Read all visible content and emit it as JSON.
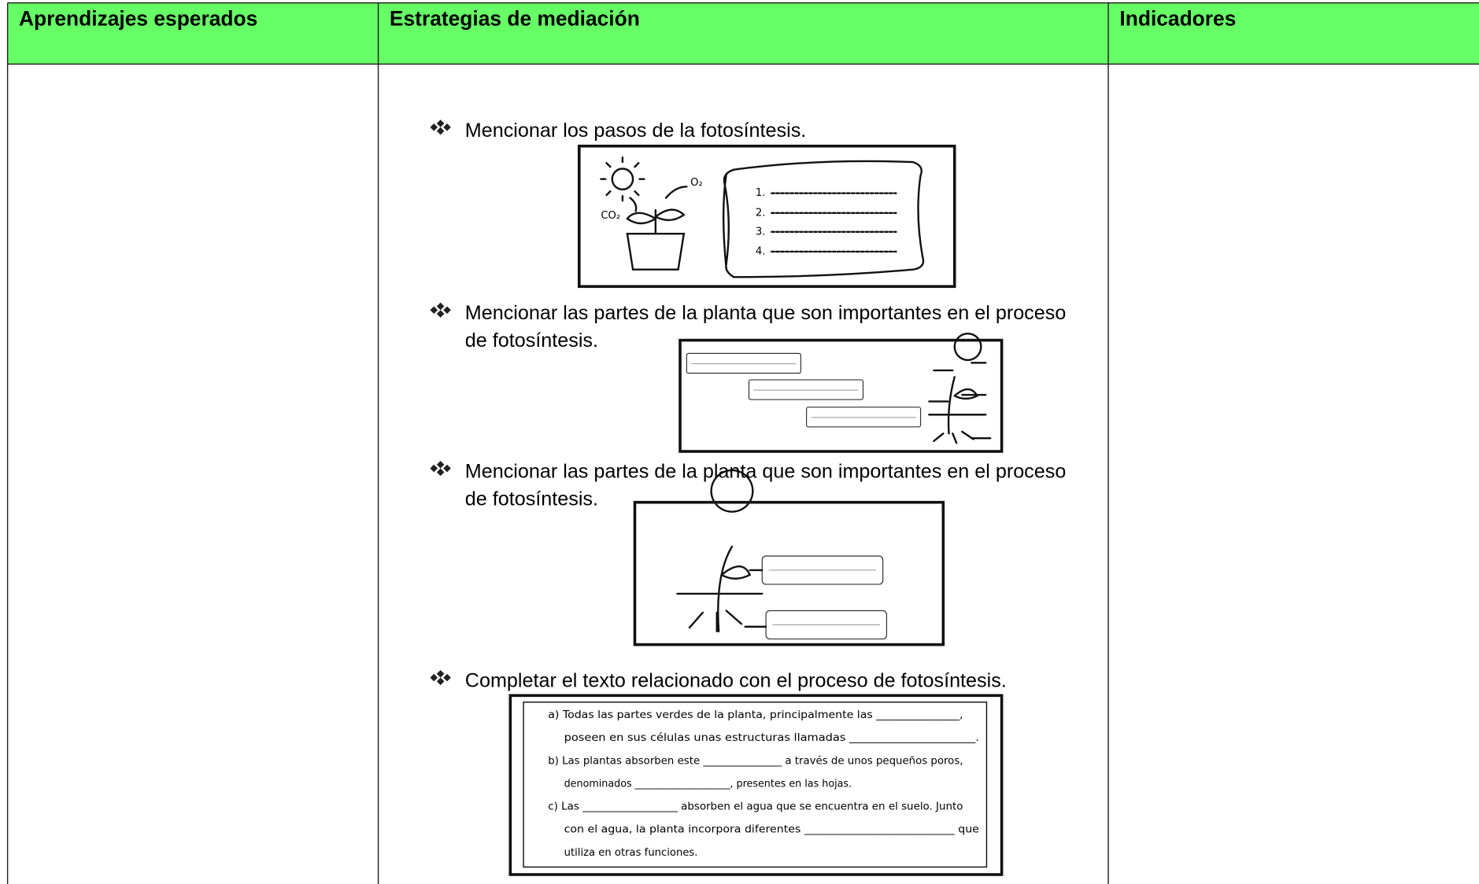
{
  "table": {
    "headers": [
      "Aprendizajes esperados",
      "Estrategias de mediación",
      "Indicadores"
    ],
    "items": [
      {
        "lines": [
          "Mencionar los pasos de la fotosíntesis."
        ],
        "figure": {
          "gases": [
            "CO₂",
            "O₂"
          ],
          "steps": [
            "1.",
            "2.",
            "3.",
            "4."
          ]
        }
      },
      {
        "lines": [
          "Mencionar las partes de la planta que son importantes en el proceso",
          "de fotosíntesis."
        ]
      },
      {
        "lines": [
          "Mencionar las partes de la planta que son importantes en el proceso",
          "de fotosíntesis."
        ]
      },
      {
        "lines": [
          "Completar el texto relacionado con el proceso de fotosíntesis."
        ],
        "figure": {
          "text": [
            "a) Todas las partes verdes de la planta, principalmente las _______________,",
            "poseen en sus células unas estructuras llamadas ______________________.",
            "b) Las plantas absorben este _______________ a través de unos pequeños poros,",
            "denominados ___________________, presentes en las hojas.",
            "c) Las __________________ absorben el agua que se encuentra en el suelo. Junto",
            "con el agua, la planta incorpora diferentes ___________________________ que",
            "utiliza en otras funciones."
          ]
        }
      }
    ]
  }
}
